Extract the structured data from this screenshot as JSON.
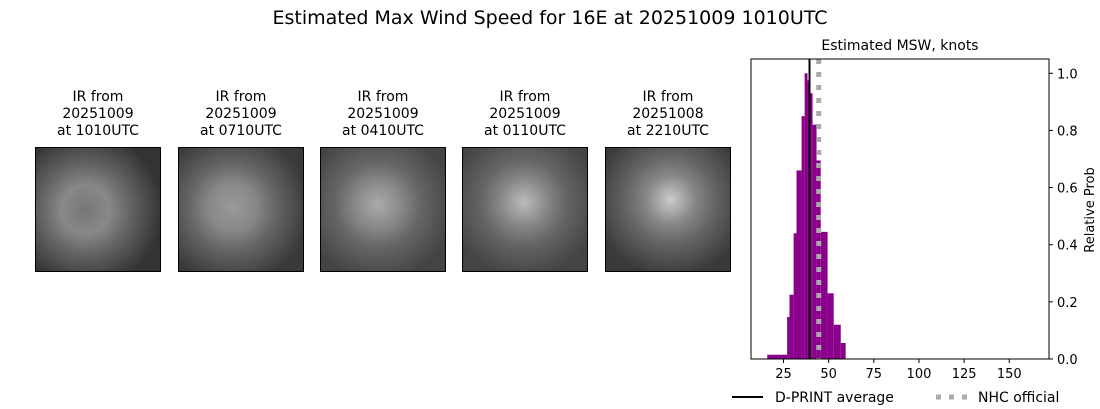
{
  "title": "Estimated Max Wind Speed for 16E at 20251009 1010UTC",
  "panels": [
    {
      "line1": "IR from",
      "line2": "20251009",
      "line3": "at 1010UTC"
    },
    {
      "line1": "IR from",
      "line2": "20251009",
      "line3": "at 0710UTC"
    },
    {
      "line1": "IR from",
      "line2": "20251009",
      "line3": "at 0410UTC"
    },
    {
      "line1": "IR from",
      "line2": "20251009",
      "line3": "at 0110UTC"
    },
    {
      "line1": "IR from",
      "line2": "20251008",
      "line3": "at 2210UTC"
    }
  ],
  "chart_data": {
    "type": "bar",
    "title": "Estimated MSW, knots",
    "xlabel": "",
    "ylabel": "Relative Prob",
    "xlim": [
      7,
      172
    ],
    "ylim": [
      0,
      1.05
    ],
    "xticks": [
      25,
      50,
      75,
      100,
      125,
      150
    ],
    "yticks": [
      0.0,
      0.2,
      0.4,
      0.6,
      0.8,
      1.0
    ],
    "bar_color": "#8b008b",
    "bin_edges": [
      16,
      27,
      28.3,
      30.6,
      32.2,
      35,
      36.7,
      38.3,
      39.4,
      41.1,
      43.3,
      45.6,
      49.4,
      52.8,
      56.7,
      59.4
    ],
    "values": [
      0.015,
      0.147,
      0.225,
      0.44,
      0.66,
      0.85,
      1.0,
      0.975,
      0.93,
      0.82,
      0.695,
      0.445,
      0.23,
      0.12,
      0.056
    ],
    "dprint_average": 39.4,
    "nhc_official": 44.5,
    "legend": [
      {
        "label": "D-PRINT average",
        "color": "#000000",
        "style": "solid"
      },
      {
        "label": "NHC official",
        "color": "#aaaaaa",
        "style": "dotted"
      }
    ],
    "legend_position": "bottom"
  }
}
